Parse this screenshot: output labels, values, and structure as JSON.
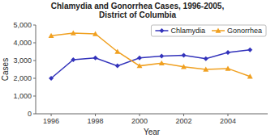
{
  "chart_data": {
    "type": "line",
    "title": "Chlamydia and Gonorrhea Cases, 1996-2005,\nDistrict of Columbia",
    "x_label": "Year",
    "y_label": "Cases",
    "x": [
      1996,
      1997,
      1998,
      1999,
      2000,
      2001,
      2002,
      2003,
      2004,
      2005
    ],
    "series": [
      {
        "name": "Chlamydia",
        "color": "#3333bb",
        "marker": "diamond",
        "values": [
          2000,
          3050,
          3150,
          2700,
          3150,
          3250,
          3300,
          3100,
          3450,
          3600
        ]
      },
      {
        "name": "Gonorrhea",
        "color": "#f0a020",
        "marker": "triangle",
        "values": [
          4400,
          4550,
          4500,
          3500,
          2700,
          2850,
          2650,
          2500,
          2550,
          2100
        ]
      }
    ],
    "xlim": [
      1995.3,
      2005.8
    ],
    "xticks": [
      1996,
      1998,
      2000,
      2002,
      2004
    ],
    "ylim": [
      0,
      5000
    ],
    "yticks": [
      0,
      {
        "value": 1000,
        "label": "1,000"
      },
      {
        "value": 2000,
        "label": "2,000"
      },
      {
        "value": 3000,
        "label": "3,000"
      },
      {
        "value": 4000,
        "label": "4,000"
      },
      {
        "value": 5000,
        "label": "5,000"
      }
    ],
    "legend": "upper right",
    "grid": false
  }
}
